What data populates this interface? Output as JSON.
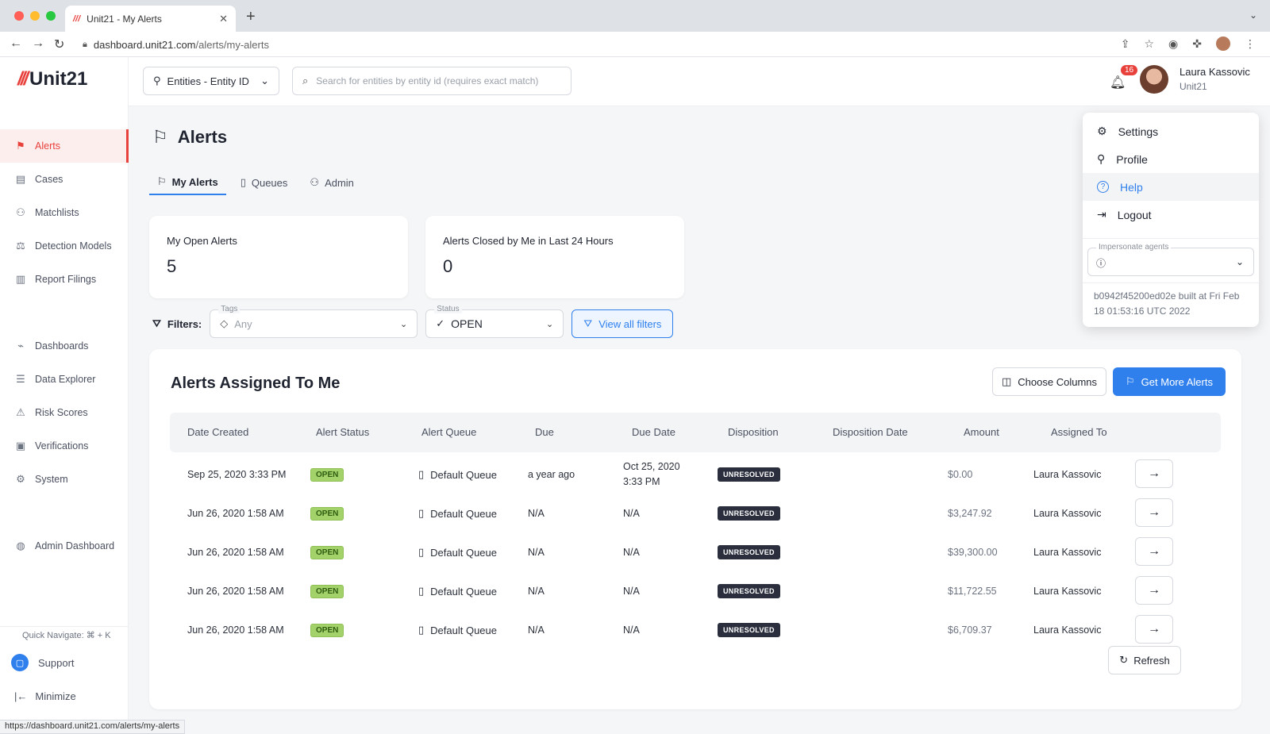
{
  "browser": {
    "tab_title": "Unit21 - My Alerts",
    "tab_favicon": "///",
    "new_tab": "+",
    "url_domain": "dashboard.unit21.com",
    "url_path": "/alerts/my-alerts",
    "status_url": "https://dashboard.unit21.com/alerts/my-alerts"
  },
  "brand": {
    "mark": "///",
    "name": "Unit21",
    "accent": "#e8413c",
    "primary": "#2f80ed"
  },
  "sidebar": {
    "items": [
      {
        "label": "Alerts",
        "icon": "flag-icon",
        "glyph": "⚑"
      },
      {
        "label": "Cases",
        "icon": "briefcase-icon",
        "glyph": "▤"
      },
      {
        "label": "Matchlists",
        "icon": "user-x-icon",
        "glyph": "⚇"
      },
      {
        "label": "Detection Models",
        "icon": "scale-icon",
        "glyph": "⚖"
      },
      {
        "label": "Report Filings",
        "icon": "building-icon",
        "glyph": "▥"
      },
      {
        "label": "Dashboards",
        "icon": "chart-line-icon",
        "glyph": "⌁"
      },
      {
        "label": "Data Explorer",
        "icon": "search-list-icon",
        "glyph": "☰"
      },
      {
        "label": "Risk Scores",
        "icon": "warning-icon",
        "glyph": "⚠"
      },
      {
        "label": "Verifications",
        "icon": "id-card-icon",
        "glyph": "▣"
      },
      {
        "label": "System",
        "icon": "gear-icon",
        "glyph": "⚙"
      },
      {
        "label": "Admin Dashboard",
        "icon": "globe-icon",
        "glyph": "◍"
      }
    ],
    "quick_navigate": "Quick Navigate: ⌘ + K",
    "support": "Support",
    "minimize": "Minimize"
  },
  "topbar": {
    "entity_select": "Entities - Entity ID",
    "search_placeholder": "Search for entities by entity id (requires exact match)",
    "notification_count": "16",
    "user_name": "Laura Kassovic",
    "user_org": "Unit21"
  },
  "page": {
    "title": "Alerts",
    "tabs": [
      {
        "label": "My Alerts",
        "icon": "flag-icon",
        "glyph": "⚐"
      },
      {
        "label": "Queues",
        "icon": "clipboard-icon",
        "glyph": "▯"
      },
      {
        "label": "Admin",
        "icon": "user-check-icon",
        "glyph": "⚇"
      }
    ]
  },
  "stats": {
    "open_label": "My Open Alerts",
    "open_value": "5",
    "closed_label": "Alerts Closed by Me in Last 24 Hours",
    "closed_value": "0"
  },
  "filters": {
    "label": "Filters:",
    "tags_legend": "Tags",
    "tags_value": "Any",
    "status_legend": "Status",
    "status_value": "OPEN",
    "view_all": "View all filters"
  },
  "table": {
    "title": "Alerts Assigned To Me",
    "choose_columns": "Choose Columns",
    "get_more": "Get More Alerts",
    "refresh": "Refresh",
    "columns": [
      "Date Created",
      "Alert Status",
      "Alert Queue",
      "Due",
      "Due Date",
      "Disposition",
      "Disposition Date",
      "Amount",
      "Assigned To"
    ],
    "rows": [
      {
        "date_created": "Sep 25, 2020 3:33 PM",
        "status": "OPEN",
        "queue": "Default Queue",
        "due": "a year ago",
        "due_date_1": "Oct 25, 2020",
        "due_date_2": "3:33 PM",
        "disposition": "UNRESOLVED",
        "disposition_date": "",
        "amount": "$0.00",
        "assigned_to": "Laura Kassovic"
      },
      {
        "date_created": "Jun 26, 2020 1:58 AM",
        "status": "OPEN",
        "queue": "Default Queue",
        "due": "N/A",
        "due_date_1": "N/A",
        "due_date_2": "",
        "disposition": "UNRESOLVED",
        "disposition_date": "",
        "amount": "$3,247.92",
        "assigned_to": "Laura Kassovic"
      },
      {
        "date_created": "Jun 26, 2020 1:58 AM",
        "status": "OPEN",
        "queue": "Default Queue",
        "due": "N/A",
        "due_date_1": "N/A",
        "due_date_2": "",
        "disposition": "UNRESOLVED",
        "disposition_date": "",
        "amount": "$39,300.00",
        "assigned_to": "Laura Kassovic"
      },
      {
        "date_created": "Jun 26, 2020 1:58 AM",
        "status": "OPEN",
        "queue": "Default Queue",
        "due": "N/A",
        "due_date_1": "N/A",
        "due_date_2": "",
        "disposition": "UNRESOLVED",
        "disposition_date": "",
        "amount": "$11,722.55",
        "assigned_to": "Laura Kassovic"
      },
      {
        "date_created": "Jun 26, 2020 1:58 AM",
        "status": "OPEN",
        "queue": "Default Queue",
        "due": "N/A",
        "due_date_1": "N/A",
        "due_date_2": "",
        "disposition": "UNRESOLVED",
        "disposition_date": "",
        "amount": "$6,709.37",
        "assigned_to": "Laura Kassovic"
      }
    ]
  },
  "user_menu": {
    "items": [
      {
        "label": "Settings",
        "icon": "gear-icon",
        "glyph": "⚙"
      },
      {
        "label": "Profile",
        "icon": "user-icon",
        "glyph": "⚲"
      },
      {
        "label": "Help",
        "icon": "help-circle-icon",
        "glyph": "?"
      },
      {
        "label": "Logout",
        "icon": "logout-icon",
        "glyph": "⇥"
      }
    ],
    "impersonate_legend": "Impersonate agents",
    "build_info": "b0942f45200ed02e built at Fri Feb 18 01:53:16 UTC 2022"
  }
}
